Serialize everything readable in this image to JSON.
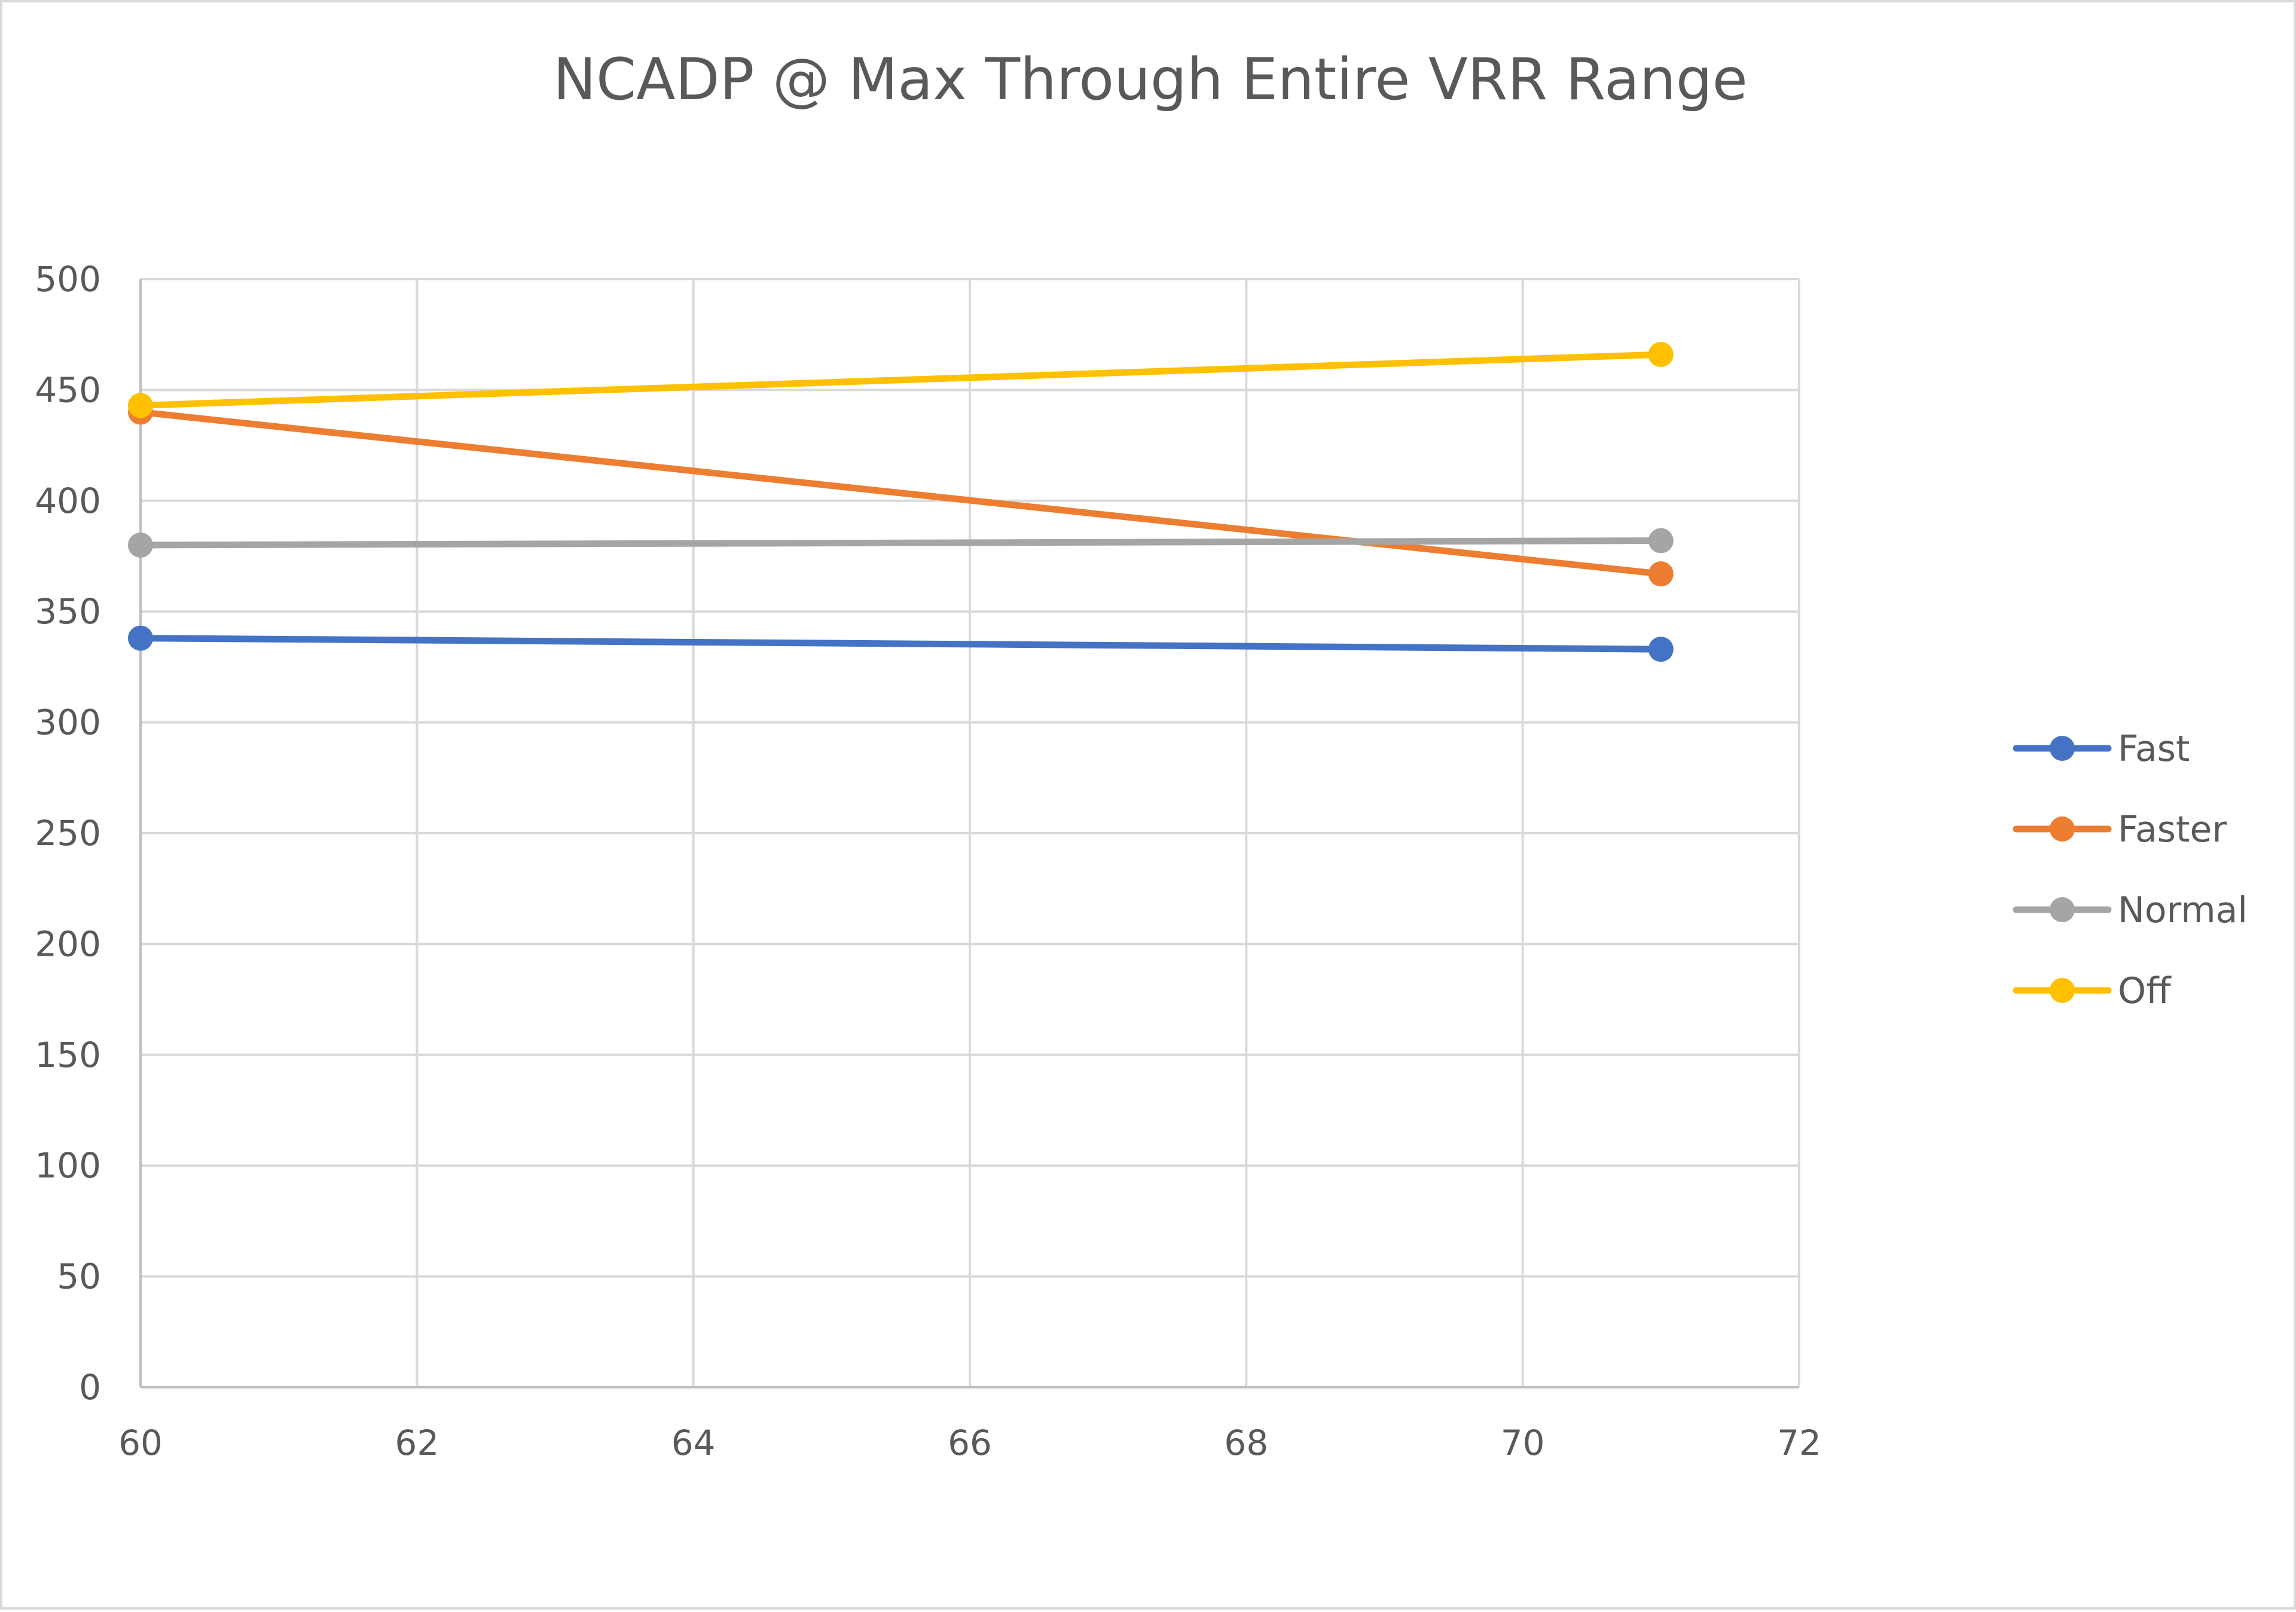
{
  "chart_data": {
    "type": "line",
    "title": "NCADP @ Max Through Entire VRR Range",
    "xlabel": "",
    "ylabel": "",
    "x": [
      60,
      71
    ],
    "xlim": [
      60,
      72
    ],
    "x_ticks": [
      60,
      62,
      64,
      66,
      68,
      70,
      72
    ],
    "ylim": [
      0,
      500
    ],
    "y_ticks": [
      0,
      50,
      100,
      150,
      200,
      250,
      300,
      350,
      400,
      450,
      500
    ],
    "grid": true,
    "legend_position": "right",
    "series": [
      {
        "name": "Fast",
        "color": "#4472C4",
        "values": [
          338,
          333
        ]
      },
      {
        "name": "Faster",
        "color": "#ED7D31",
        "values": [
          440,
          367
        ]
      },
      {
        "name": "Normal",
        "color": "#A5A5A5",
        "values": [
          380,
          382
        ]
      },
      {
        "name": "Off",
        "color": "#FFC000",
        "values": [
          443,
          466
        ]
      }
    ]
  }
}
